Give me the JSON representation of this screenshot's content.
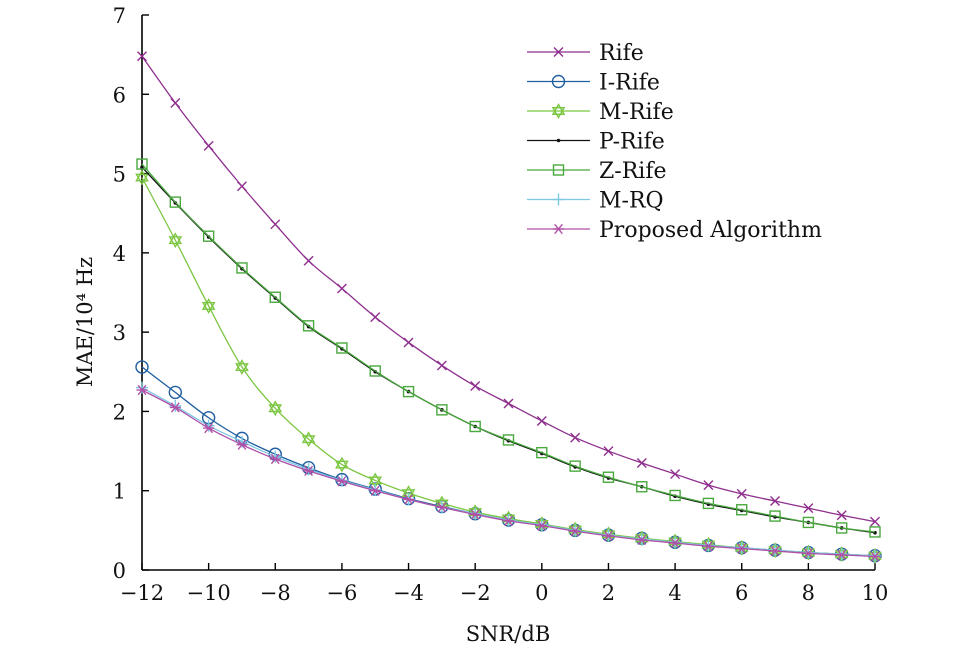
{
  "chart_data": {
    "type": "line",
    "xlabel": "SNR/dB",
    "ylabel": "MAE/10⁴ Hz",
    "xlim": [
      -12,
      10
    ],
    "ylim": [
      0,
      7
    ],
    "x_ticks": [
      -12,
      -10,
      -8,
      -6,
      -4,
      -2,
      0,
      2,
      4,
      6,
      8,
      10
    ],
    "x_tick_labels": [
      "−12",
      "−10",
      "−8",
      "−6",
      "−4",
      "−2",
      "0",
      "2",
      "4",
      "6",
      "8",
      "10"
    ],
    "y_ticks": [
      0,
      1,
      2,
      3,
      4,
      5,
      6,
      7
    ],
    "y_tick_labels": [
      "0",
      "1",
      "2",
      "3",
      "4",
      "5",
      "6",
      "7"
    ],
    "grid": false,
    "legend_position": "top-right",
    "x": [
      -12,
      -11,
      -10,
      -9,
      -8,
      -7,
      -6,
      -5,
      -4,
      -3,
      -2,
      -1,
      0,
      1,
      2,
      3,
      4,
      5,
      6,
      7,
      8,
      9,
      10
    ],
    "series": [
      {
        "name": "Rife",
        "color": "#8e2f8e",
        "marker": "x",
        "values": [
          6.48,
          5.89,
          5.35,
          4.84,
          4.36,
          3.9,
          3.55,
          3.19,
          2.87,
          2.58,
          2.32,
          2.1,
          1.88,
          1.67,
          1.5,
          1.35,
          1.21,
          1.07,
          0.96,
          0.87,
          0.78,
          0.69,
          0.61
        ]
      },
      {
        "name": "I-Rife",
        "color": "#1f5fa0",
        "marker": "circle",
        "values": [
          2.56,
          2.24,
          1.92,
          1.66,
          1.46,
          1.29,
          1.14,
          1.02,
          0.9,
          0.8,
          0.71,
          0.63,
          0.57,
          0.5,
          0.44,
          0.4,
          0.35,
          0.31,
          0.28,
          0.25,
          0.22,
          0.2,
          0.18
        ]
      },
      {
        "name": "M-Rife",
        "color": "#7cc642",
        "marker": "star6",
        "values": [
          4.95,
          4.16,
          3.33,
          2.56,
          2.04,
          1.65,
          1.33,
          1.13,
          0.97,
          0.84,
          0.73,
          0.65,
          0.58,
          0.51,
          0.45,
          0.4,
          0.36,
          0.32,
          0.28,
          0.25,
          0.22,
          0.2,
          0.18
        ]
      },
      {
        "name": "P-Rife",
        "color": "#111111",
        "marker": "dot",
        "values": [
          5.08,
          4.63,
          4.2,
          3.8,
          3.43,
          3.07,
          2.79,
          2.5,
          2.25,
          2.02,
          1.81,
          1.63,
          1.47,
          1.3,
          1.16,
          1.05,
          0.93,
          0.83,
          0.75,
          0.67,
          0.6,
          0.53,
          0.47
        ]
      },
      {
        "name": "Z-Rife",
        "color": "#4aa83f",
        "marker": "square",
        "values": [
          5.12,
          4.64,
          4.21,
          3.81,
          3.44,
          3.08,
          2.8,
          2.51,
          2.25,
          2.02,
          1.81,
          1.64,
          1.48,
          1.31,
          1.17,
          1.05,
          0.94,
          0.84,
          0.76,
          0.68,
          0.6,
          0.53,
          0.48
        ]
      },
      {
        "name": "M-RQ",
        "color": "#7ec8e3",
        "marker": "plus",
        "values": [
          2.3,
          2.07,
          1.82,
          1.62,
          1.43,
          1.27,
          1.13,
          1.01,
          0.89,
          0.79,
          0.71,
          0.63,
          0.57,
          0.5,
          0.44,
          0.39,
          0.35,
          0.31,
          0.28,
          0.25,
          0.22,
          0.2,
          0.18
        ]
      },
      {
        "name": "Proposed Algorithm",
        "color": "#b04fa8",
        "marker": "asterisk",
        "values": [
          2.27,
          2.05,
          1.79,
          1.58,
          1.4,
          1.25,
          1.12,
          1.0,
          0.89,
          0.79,
          0.7,
          0.62,
          0.56,
          0.49,
          0.43,
          0.38,
          0.34,
          0.3,
          0.27,
          0.24,
          0.21,
          0.19,
          0.17
        ]
      }
    ]
  }
}
